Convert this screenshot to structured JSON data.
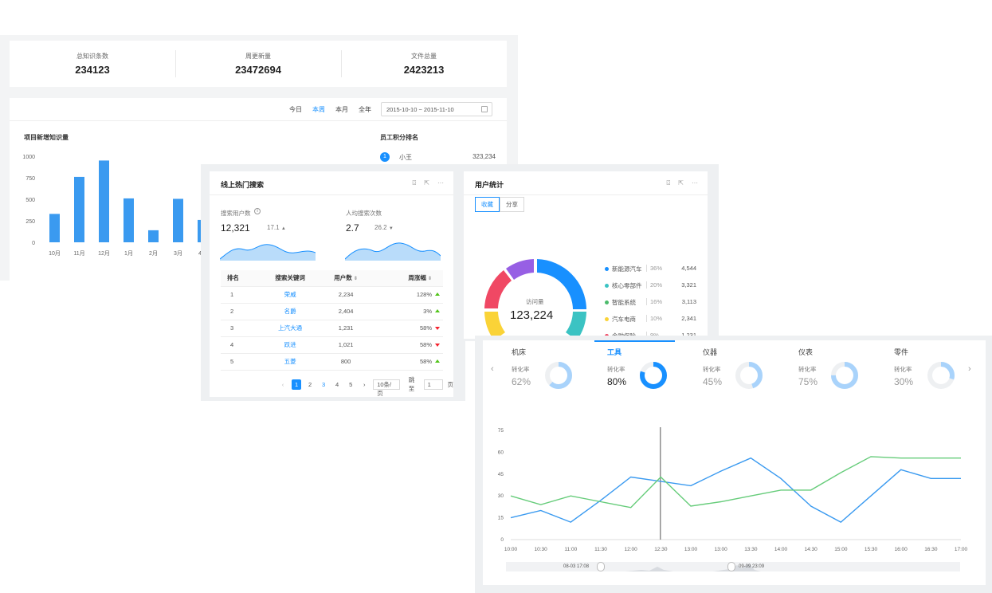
{
  "stats": [
    {
      "label": "总知识条数",
      "value": "234123"
    },
    {
      "label": "周更新量",
      "value": "23472694"
    },
    {
      "label": "文件总量",
      "value": "2423213"
    }
  ],
  "range_tabs": [
    "今日",
    "本周",
    "本月",
    "全年"
  ],
  "range_active": "本周",
  "date_range": "2015-10-10 ~ 2015-11-10",
  "bar_title": "项目新增知识量",
  "rank_title": "员工积分排名",
  "rank": [
    {
      "no": "1",
      "name": "小王",
      "value": "323,234"
    }
  ],
  "chart_data": [
    {
      "type": "bar",
      "title": "项目新增知识量",
      "categories": [
        "10月",
        "11月",
        "12月",
        "1月",
        "2月",
        "3月",
        "4月"
      ],
      "values": [
        330,
        760,
        950,
        510,
        140,
        505,
        260
      ],
      "ylim": [
        0,
        1000
      ],
      "yticks": [
        "0",
        "250",
        "500",
        "750",
        "1000"
      ],
      "color": "#3a9af0"
    },
    {
      "type": "line",
      "x": [
        "10:00",
        "10:30",
        "11:00",
        "11:30",
        "12:00",
        "12:30",
        "13:00",
        "13:00",
        "13:30",
        "14:00",
        "14:30",
        "15:00",
        "15:30",
        "16:00",
        "16:30",
        "17:00"
      ],
      "xtick_labels": [
        "10:00",
        "10:30",
        "11:00",
        "11:30",
        "12:00",
        "12:30",
        "13:00",
        "13:00",
        "13:30",
        "14:00",
        "14:30",
        "15:00",
        "15:30",
        "16:00",
        "16:30",
        "17:00"
      ],
      "ylim": [
        0,
        75
      ],
      "yticks": [
        "0",
        "15",
        "30",
        "45",
        "60",
        "75"
      ],
      "series": [
        {
          "color": "#3a9af0",
          "values": [
            15,
            20,
            12,
            27,
            43,
            40,
            37,
            47,
            56,
            42,
            23,
            12,
            30,
            48,
            42,
            42
          ]
        },
        {
          "color": "#66cc7a",
          "values": [
            30,
            24,
            30,
            26,
            22,
            43,
            23,
            26,
            30,
            34,
            34,
            46,
            57,
            56,
            56,
            56
          ]
        }
      ]
    }
  ],
  "hot": {
    "title": "线上热门搜索",
    "metric1_label": "搜索用户数",
    "metric1_value": "12,321",
    "metric1_delta": "17.1",
    "metric2_label": "人均搜索次数",
    "metric2_value": "2.7",
    "metric2_delta": "26.2",
    "columns": [
      "排名",
      "搜索关键词",
      "用户数",
      "周涨幅"
    ],
    "rows": [
      {
        "rank": "1",
        "keyword": "荣威",
        "users": "2,234",
        "change": "128%",
        "dir": "up"
      },
      {
        "rank": "2",
        "keyword": "名爵",
        "users": "2,404",
        "change": "3%",
        "dir": "up"
      },
      {
        "rank": "3",
        "keyword": "上汽大通",
        "users": "1,231",
        "change": "58%",
        "dir": "down"
      },
      {
        "rank": "4",
        "keyword": "跃进",
        "users": "1,021",
        "change": "58%",
        "dir": "down"
      },
      {
        "rank": "5",
        "keyword": "五菱",
        "users": "800",
        "change": "58%",
        "dir": "up"
      }
    ],
    "pager": {
      "pages": [
        "1",
        "2",
        "3",
        "4",
        "5"
      ],
      "size": "10条/页",
      "jump_label": "跳至",
      "jump_value": "1",
      "page_suffix": "页"
    }
  },
  "user": {
    "title": "用户统计",
    "segments": [
      "收藏",
      "分享"
    ],
    "donut_label": "访问量",
    "donut_value": "123,224",
    "legend": [
      {
        "name": "新能源汽车",
        "pct": "36%",
        "value": "4,544",
        "color": "#1890ff"
      },
      {
        "name": "核心零部件",
        "pct": "20%",
        "value": "3,321",
        "color": "#3bc3c3"
      },
      {
        "name": "智能系统",
        "pct": "16%",
        "value": "3,113",
        "color": "#4cbb6b"
      },
      {
        "name": "汽车电商",
        "pct": "10%",
        "value": "2,341",
        "color": "#fad337"
      },
      {
        "name": "金融保险",
        "pct": "9%",
        "value": "1,231",
        "color": "#f04864"
      }
    ]
  },
  "conv": {
    "tabs": [
      {
        "name": "机床",
        "label": "转化率",
        "value": "62%",
        "ratio": 0.62
      },
      {
        "name": "工具",
        "label": "转化率",
        "value": "80%",
        "ratio": 0.8
      },
      {
        "name": "仪器",
        "label": "转化率",
        "value": "45%",
        "ratio": 0.45
      },
      {
        "name": "仪表",
        "label": "转化率",
        "value": "75%",
        "ratio": 0.75
      },
      {
        "name": "零件",
        "label": "转化率",
        "value": "30%",
        "ratio": 0.3
      }
    ],
    "active_tab": "工具",
    "slider_start": "08-03 17:08",
    "slider_end": "09-09 23:09"
  }
}
